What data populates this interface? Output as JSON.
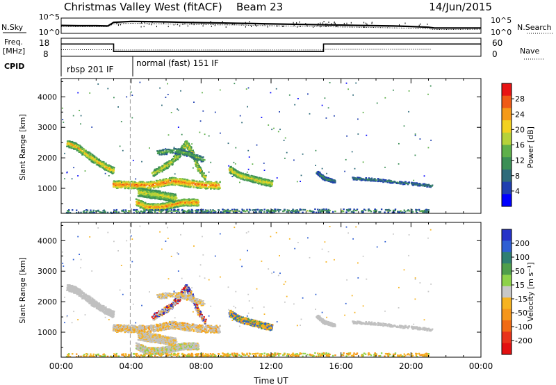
{
  "header": {
    "station": "Christmas Valley West (fitACF)",
    "beam": "Beam 23",
    "date": "14/Jun/2015"
  },
  "chart_data": [
    {
      "type": "line",
      "panel": "noise",
      "left_label": "N.Sky",
      "right_label": "N.Search",
      "left_ticks": [
        "10^5",
        "10^0"
      ],
      "right_ticks": [
        "10^5",
        "10^0"
      ],
      "x": [
        "00:00",
        "01:00",
        "02:00",
        "02:40",
        "03:00",
        "04:00",
        "05:00",
        "06:00",
        "07:00",
        "08:00",
        "09:00",
        "10:00",
        "11:00",
        "12:00",
        "13:00",
        "14:00",
        "15:00",
        "16:00",
        "17:00",
        "18:00",
        "19:00",
        "20:00",
        "21:00",
        "21:20",
        "22:00",
        "23:00",
        "24:00"
      ],
      "series": [
        {
          "role": "sky",
          "values": [
            0.52,
            0.5,
            0.5,
            0.48,
            0.72,
            0.78,
            0.77,
            0.75,
            0.72,
            0.7,
            0.68,
            0.66,
            0.64,
            0.62,
            0.6,
            0.58,
            0.56,
            0.54,
            0.52,
            0.5,
            0.48,
            0.45,
            0.4,
            0.35,
            0.35,
            0.35,
            0.35
          ]
        },
        {
          "role": "search",
          "values": [
            0.45,
            0.44,
            0.44,
            0.44,
            0.62,
            0.66,
            0.64,
            0.62,
            0.6,
            0.58,
            0.56,
            0.55,
            0.52,
            0.5,
            0.48,
            0.46,
            0.44,
            0.42,
            0.4,
            0.38,
            0.36,
            0.34,
            0.3,
            0.25,
            0.25,
            0.26,
            0.27
          ]
        }
      ]
    },
    {
      "type": "line",
      "panel": "frequency",
      "left_label": "Freq.",
      "left_unit": "[MHz]",
      "right_label": "Nave",
      "left_ticks": [
        18,
        8
      ],
      "right_ticks": [
        60,
        0
      ],
      "series": [
        {
          "role": "freq",
          "segments": [
            {
              "x0": 0,
              "x1": 3.0,
              "value": 14.8
            },
            {
              "x0": 3.0,
              "x1": 15.0,
              "value": 10.6
            },
            {
              "x0": 15.0,
              "x1": 21.2,
              "value": 14.8
            },
            {
              "x0": 21.2,
              "x1": 24.0,
              "value": 14.8
            }
          ]
        },
        {
          "role": "nave",
          "segments": [
            {
              "x0": 0,
              "x1": 3.0,
              "value": 22
            },
            {
              "x0": 3.0,
              "x1": 15.0,
              "value": 21
            },
            {
              "x0": 15.0,
              "x1": 21.2,
              "value": 23
            }
          ]
        }
      ]
    },
    {
      "type": "table",
      "panel": "cpid",
      "label": "CPID",
      "modes": [
        {
          "start": 0,
          "label": "rbsp 201 IF"
        },
        {
          "start": 3.95,
          "label": "normal (fast) 151 IF"
        }
      ]
    },
    {
      "type": "heatmap",
      "panel": "power",
      "ylabel": "Slant Range [km]",
      "ylim": [
        180,
        4600
      ],
      "yticks": [
        1000,
        2000,
        3000,
        4000
      ],
      "xlim": [
        0,
        24
      ],
      "colorbar": {
        "label": "Power [dB]",
        "ticks": [
          4,
          8,
          12,
          16,
          20,
          24,
          28
        ],
        "range": [
          0,
          32
        ],
        "colors": [
          "#0000ff",
          "#1f3fb0",
          "#2f6b7a",
          "#3c8f56",
          "#5fb04a",
          "#b6d23a",
          "#f3d120",
          "#f59a19",
          "#ef5a16",
          "#e81414"
        ]
      },
      "echoes": [
        {
          "name": "morning band",
          "pts": [
            [
              0.3,
              2500
            ],
            [
              0.8,
              2400
            ],
            [
              1.4,
              2150
            ],
            [
              2.0,
              1900
            ],
            [
              2.6,
              1700
            ],
            [
              2.95,
              1600
            ]
          ],
          "thick": 3,
          "pmin": 10,
          "pmax": 27,
          "width": 160
        },
        {
          "name": "main band",
          "pts": [
            [
              2.95,
              1150
            ],
            [
              3.6,
              1140
            ],
            [
              4.2,
              1130
            ],
            [
              5.0,
              1120
            ],
            [
              5.6,
              1180
            ],
            [
              6.3,
              1260
            ],
            [
              6.8,
              1230
            ],
            [
              7.3,
              1180
            ],
            [
              8.2,
              1130
            ],
            [
              9.0,
              1120
            ]
          ],
          "thick": 4,
          "pmin": 14,
          "pmax": 30,
          "width": 150
        },
        {
          "name": "lower arc",
          "pts": [
            [
              4.3,
              560
            ],
            [
              4.8,
              420
            ],
            [
              5.3,
              400
            ],
            [
              5.9,
              430
            ],
            [
              6.4,
              500
            ],
            [
              6.9,
              560
            ],
            [
              7.4,
              560
            ],
            [
              7.8,
              560
            ]
          ],
          "thick": 4,
          "pmin": 12,
          "pmax": 29,
          "width": 140
        },
        {
          "name": "rising arc",
          "pts": [
            [
              5.2,
              1500
            ],
            [
              5.8,
              1700
            ],
            [
              6.3,
              1900
            ],
            [
              6.8,
              2200
            ],
            [
              7.1,
              2500
            ],
            [
              7.4,
              2250
            ],
            [
              7.8,
              1700
            ],
            [
              8.2,
              1350
            ]
          ],
          "thick": 3,
          "pmin": 10,
          "pmax": 24,
          "width": 140
        },
        {
          "name": "inner blob",
          "pts": [
            [
              4.4,
              900
            ],
            [
              4.9,
              850
            ],
            [
              5.4,
              820
            ],
            [
              6.0,
              760
            ],
            [
              6.5,
              700
            ]
          ],
          "thick": 3,
          "pmin": 10,
          "pmax": 22,
          "width": 200
        },
        {
          "name": "midday band",
          "pts": [
            [
              9.6,
              1650
            ],
            [
              10.1,
              1450
            ],
            [
              10.8,
              1350
            ],
            [
              11.4,
              1250
            ],
            [
              12.0,
              1180
            ]
          ],
          "thick": 3,
          "pmin": 10,
          "pmax": 24,
          "width": 150
        },
        {
          "name": "afternoon band",
          "pts": [
            [
              14.6,
              1550
            ],
            [
              15.0,
              1350
            ],
            [
              15.6,
              1250
            ]
          ],
          "thick": 1,
          "pmin": 4,
          "pmax": 14,
          "width": 120
        },
        {
          "name": "evening band",
          "pts": [
            [
              16.6,
              1350
            ],
            [
              18.0,
              1300
            ],
            [
              19.5,
              1200
            ],
            [
              21.2,
              1100
            ]
          ],
          "thick": 1,
          "pmin": 4,
          "pmax": 12,
          "width": 110
        },
        {
          "name": "ground scatter",
          "pts": [
            [
              0.3,
              260
            ],
            [
              6.0,
              270
            ],
            [
              10.0,
              280
            ],
            [
              15.0,
              290
            ],
            [
              21.2,
              280
            ]
          ],
          "thick": 2,
          "pmin": 3,
          "pmax": 18,
          "width": 100
        },
        {
          "name": "high sparse",
          "pts": [
            [
              5.5,
              2200
            ],
            [
              6.5,
              2250
            ],
            [
              7.3,
              2150
            ],
            [
              8.1,
              1950
            ]
          ],
          "thick": 1,
          "pmin": 6,
          "pmax": 18,
          "width": 200
        }
      ]
    },
    {
      "type": "heatmap",
      "panel": "velocity",
      "ylabel": "Slant Range [km]",
      "ylim": [
        180,
        4600
      ],
      "yticks": [
        1000,
        2000,
        3000,
        4000
      ],
      "xlim": [
        0,
        24
      ],
      "xticks": [
        "00:00",
        "04:00",
        "08:00",
        "12:00",
        "16:00",
        "20:00",
        "00:00"
      ],
      "xlabel": "Time UT",
      "colorbar": {
        "label": "Velocity [m s⁻¹]",
        "ticks": [
          200,
          100,
          50,
          15,
          -15,
          -50,
          -100,
          -200
        ],
        "colors": [
          "#2633c8",
          "#2f5fd3",
          "#2f7f72",
          "#4f9e4b",
          "#8ed24a",
          "#c8c8c8",
          "#f6b320",
          "#f5961b",
          "#f06b15",
          "#e8331a",
          "#e21010"
        ]
      },
      "ground_scatter_color": "#c0c0c0"
    }
  ]
}
